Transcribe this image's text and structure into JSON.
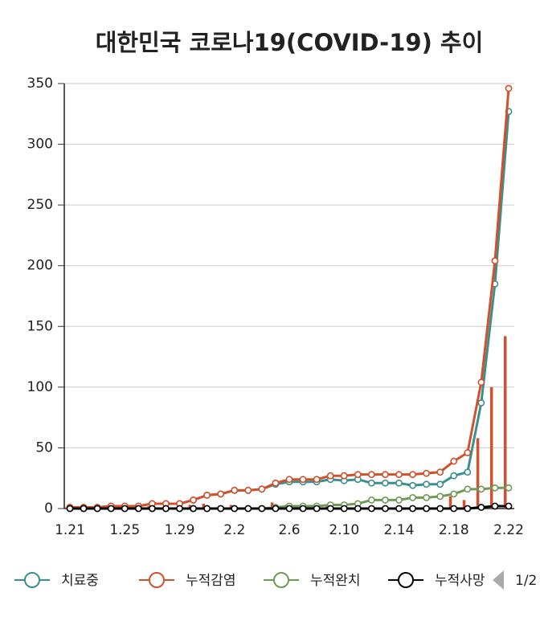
{
  "chart_data": {
    "type": "line",
    "title": "대한민국 코로나19(COVID-19) 추이",
    "categories": [
      "1.21",
      null,
      null,
      null,
      "1.25",
      null,
      null,
      null,
      "1.29",
      null,
      null,
      null,
      "2.2",
      null,
      null,
      null,
      "2.6",
      null,
      null,
      null,
      "2.10",
      null,
      null,
      null,
      "2.14",
      null,
      null,
      null,
      "2.18",
      null,
      null,
      null,
      "2.22"
    ],
    "series": [
      {
        "type": "bar",
        "color": "#d2502b",
        "values": [
          1,
          0,
          0,
          1,
          0,
          0,
          2,
          0,
          0,
          3,
          4,
          1,
          3,
          0,
          1,
          5,
          3,
          0,
          0,
          3,
          0,
          1,
          0,
          0,
          0,
          0,
          1,
          1,
          10,
          7,
          58,
          100,
          142
        ]
      },
      {
        "name": "치료중",
        "color": "#3a8f8f",
        "values": [
          1,
          1,
          1,
          2,
          2,
          2,
          4,
          4,
          4,
          7,
          11,
          12,
          15,
          15,
          16,
          20,
          22,
          22,
          22,
          24,
          23,
          24,
          21,
          21,
          21,
          19,
          20,
          20,
          27,
          30,
          87,
          185,
          327
        ]
      },
      {
        "name": "누적감염",
        "color": "#d2502b",
        "values": [
          1,
          1,
          1,
          2,
          2,
          2,
          4,
          4,
          4,
          7,
          11,
          12,
          15,
          15,
          16,
          21,
          24,
          24,
          24,
          27,
          27,
          28,
          28,
          28,
          28,
          28,
          29,
          30,
          39,
          46,
          104,
          204,
          346
        ]
      },
      {
        "name": "누적완치",
        "color": "#6f9a55",
        "values": [
          0,
          0,
          0,
          0,
          0,
          0,
          0,
          0,
          0,
          0,
          0,
          0,
          0,
          0,
          0,
          1,
          2,
          2,
          2,
          3,
          3,
          4,
          7,
          7,
          7,
          9,
          9,
          10,
          12,
          16,
          16,
          17,
          17
        ]
      },
      {
        "name": "누적사망",
        "color": "#000000",
        "values": [
          0,
          0,
          0,
          0,
          0,
          0,
          0,
          0,
          0,
          0,
          0,
          0,
          0,
          0,
          0,
          0,
          0,
          0,
          0,
          0,
          0,
          0,
          0,
          0,
          0,
          0,
          0,
          0,
          0,
          0,
          1,
          2,
          2
        ]
      }
    ],
    "ylim": [
      0,
      350
    ],
    "yticks": [
      0,
      50,
      100,
      150,
      200,
      250,
      300,
      350
    ],
    "grid": true,
    "legend": "bottom",
    "legend_page": "1/2"
  }
}
